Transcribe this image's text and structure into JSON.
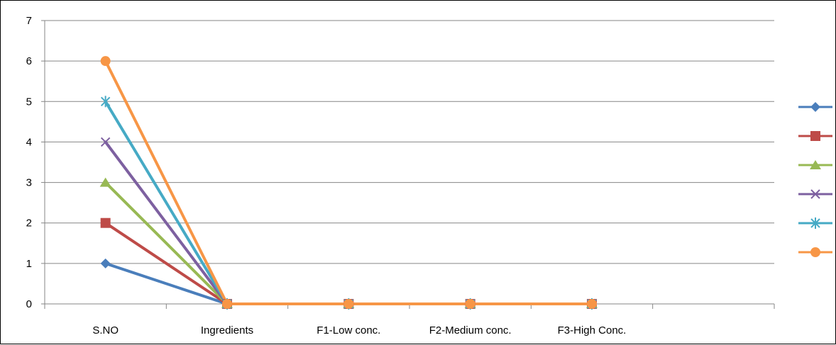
{
  "chart_data": {
    "type": "line",
    "categories": [
      "S.NO",
      "Ingredients",
      "F1-Low conc.",
      "F2-Medium conc.",
      "F3-High Conc."
    ],
    "series": [
      {
        "values": [
          1,
          0,
          0,
          0,
          0
        ],
        "color": "#4a7ebb",
        "marker": "diamond"
      },
      {
        "values": [
          2,
          0,
          0,
          0,
          0
        ],
        "color": "#be4b48",
        "marker": "square"
      },
      {
        "values": [
          3,
          0,
          0,
          0,
          0
        ],
        "color": "#98b954",
        "marker": "triangle"
      },
      {
        "values": [
          4,
          0,
          0,
          0,
          0
        ],
        "color": "#7d60a0",
        "marker": "x"
      },
      {
        "values": [
          5,
          0,
          0,
          0,
          0
        ],
        "color": "#46aac5",
        "marker": "asterisk"
      },
      {
        "values": [
          6,
          0,
          0,
          0,
          0
        ],
        "color": "#f79646",
        "marker": "circle"
      }
    ],
    "y_ticks": [
      "0",
      "1",
      "2",
      "3",
      "4",
      "5",
      "6",
      "7"
    ],
    "ylim": [
      0,
      7
    ],
    "grid": true,
    "legend": "right",
    "axis_color": "#868686",
    "grid_color": "#868686"
  }
}
